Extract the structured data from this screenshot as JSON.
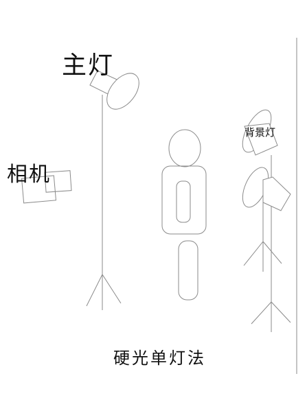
{
  "labels": {
    "main_light": "主灯",
    "camera": "相机",
    "background_light": "背景灯",
    "title": "硬光单灯法"
  },
  "colors": {
    "line": "#8a8a8a",
    "text": "#111111",
    "background": "#ffffff"
  }
}
